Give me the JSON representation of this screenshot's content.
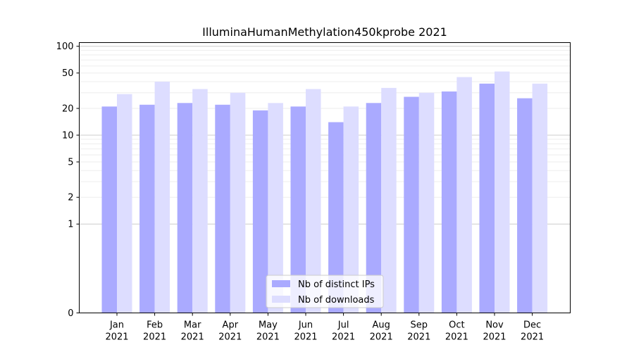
{
  "chart_data": {
    "type": "bar",
    "title": "IlluminaHumanMethylation450kprobe 2021",
    "xlabel": "",
    "ylabel": "",
    "yscale": "symlog",
    "ylim": [
      0,
      110
    ],
    "yticks": [
      0,
      1,
      2,
      5,
      10,
      20,
      50,
      100
    ],
    "categories": [
      [
        "Jan",
        "2021"
      ],
      [
        "Feb",
        "2021"
      ],
      [
        "Mar",
        "2021"
      ],
      [
        "Apr",
        "2021"
      ],
      [
        "May",
        "2021"
      ],
      [
        "Jun",
        "2021"
      ],
      [
        "Jul",
        "2021"
      ],
      [
        "Aug",
        "2021"
      ],
      [
        "Sep",
        "2021"
      ],
      [
        "Oct",
        "2021"
      ],
      [
        "Nov",
        "2021"
      ],
      [
        "Dec",
        "2021"
      ]
    ],
    "series": [
      {
        "name": "Nb of distinct IPs",
        "color": "#aaaaff",
        "values": [
          21,
          22,
          23,
          22,
          19,
          21,
          14,
          23,
          27,
          31,
          38,
          26
        ]
      },
      {
        "name": "Nb of downloads",
        "color": "#ddddff",
        "values": [
          29,
          40,
          33,
          30,
          23,
          33,
          21,
          34,
          30,
          45,
          52,
          38
        ]
      }
    ],
    "grid": "horizontal, light grey",
    "legend_position": "bottom-center"
  }
}
